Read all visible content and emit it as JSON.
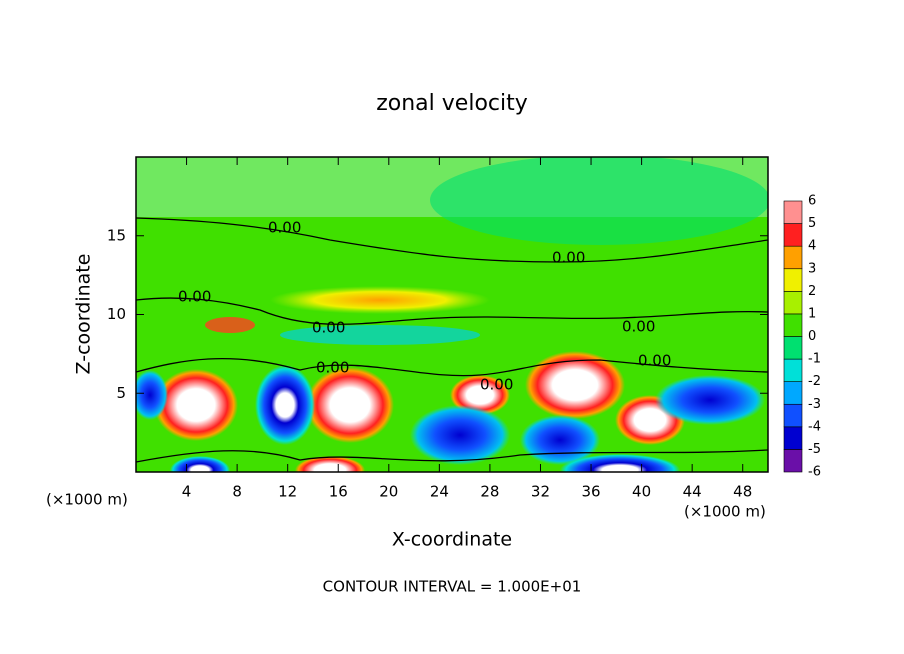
{
  "chart_data": {
    "type": "contour",
    "title": "zonal velocity",
    "x_label": "X-coordinate",
    "y_label": "Z-coordinate",
    "x_unit_label": "(×1000 m)",
    "footer": "CONTOUR INTERVAL = 1.000E+01",
    "xlim": [
      0,
      50
    ],
    "xticks": [
      4,
      8,
      12,
      16,
      20,
      24,
      28,
      32,
      36,
      40,
      44,
      48
    ],
    "ylim": [
      0,
      20
    ],
    "yticks": [
      5,
      10,
      15
    ],
    "contour_labels": [
      "0.00",
      "0.00",
      "0.00",
      "0.00",
      "0.00",
      "0.00",
      "0.00",
      "0.00"
    ],
    "colorbar": {
      "levels": [
        -6,
        -5,
        -4,
        -3,
        -2,
        -1,
        0,
        1,
        2,
        3,
        4,
        5,
        6
      ],
      "colors": [
        "#6a0fa8",
        "#0000d0",
        "#1050ff",
        "#00a8ff",
        "#00e0d8",
        "#00e070",
        "#40e000",
        "#a8f000",
        "#f0f000",
        "#ffa000",
        "#ff2020",
        "#ff9090"
      ]
    }
  }
}
